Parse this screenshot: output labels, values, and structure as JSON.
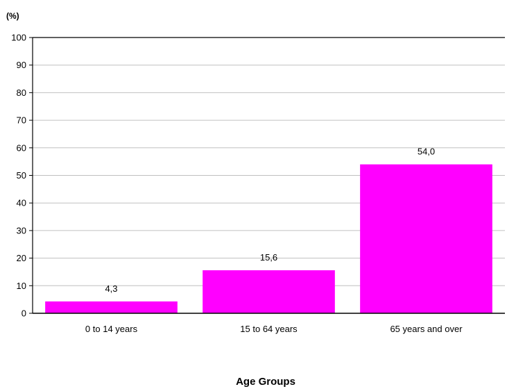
{
  "chart_data": {
    "type": "bar",
    "ylabel": "(%)",
    "xlabel": "Age Groups",
    "categories": [
      "0 to 14 years",
      "15 to 64 years",
      "65 years and over"
    ],
    "values": [
      4.3,
      15.6,
      54.0
    ],
    "data_labels": [
      "4,3",
      "15,6",
      "54,0"
    ],
    "ylim": [
      0,
      100
    ],
    "yticks": [
      0,
      10,
      20,
      30,
      40,
      50,
      60,
      70,
      80,
      90,
      100
    ],
    "grid": true,
    "legend": "none",
    "bar_color": "#ff00ff",
    "grid_color": "#c0c0c0"
  }
}
